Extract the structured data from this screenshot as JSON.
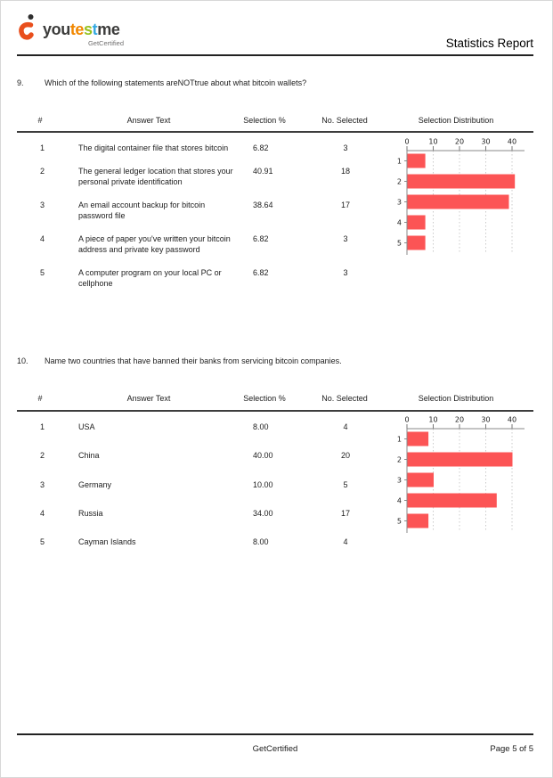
{
  "header": {
    "logo": {
      "word_parts": [
        {
          "text": "you",
          "color": "#3c3c3b"
        },
        {
          "text": "te",
          "color": "#f18700"
        },
        {
          "text": "s",
          "color": "#95c11f"
        },
        {
          "text": "t",
          "color": "#36a9e1"
        },
        {
          "text": "me",
          "color": "#3c3c3b"
        }
      ],
      "tagline": "GetCertified"
    },
    "title": "Statistics Report"
  },
  "questions": [
    {
      "number": "9.",
      "text": "Which of the following statements areNOTtrue about what bitcoin wallets?",
      "table": {
        "columns": [
          "#",
          "Answer Text",
          "Selection %",
          "No. Selected",
          "Selection Distribution"
        ],
        "rows": [
          [
            "1",
            "The digital container file that stores bitcoin",
            "6.82",
            "3"
          ],
          [
            "2",
            "The general ledger location that stores your personal private identification",
            "40.91",
            "18"
          ],
          [
            "3",
            "An email account backup for bitcoin password file",
            "38.64",
            "17"
          ],
          [
            "4",
            "A piece of paper you've written your bitcoin address and private key password",
            "6.82",
            "3"
          ],
          [
            "5",
            "A computer program on your local PC or cellphone",
            "6.82",
            "3"
          ]
        ]
      },
      "chart_data": {
        "type": "bar",
        "orientation": "horizontal",
        "title": "Selection Distribution",
        "categories": [
          "1",
          "2",
          "3",
          "4",
          "5"
        ],
        "values": [
          6.82,
          40.91,
          38.64,
          6.82,
          6.82
        ],
        "xticks": [
          0,
          10,
          20,
          30,
          40
        ],
        "xlim": [
          0,
          44
        ],
        "bar_color": "#fc5455",
        "grid": "dashed-vertical"
      }
    },
    {
      "number": "10.",
      "text": "Name two countries that have banned their banks from servicing bitcoin companies.",
      "table": {
        "columns": [
          "#",
          "Answer Text",
          "Selection %",
          "No. Selected",
          "Selection Distribution"
        ],
        "rows": [
          [
            "1",
            "USA",
            "8.00",
            "4"
          ],
          [
            "2",
            "China",
            "40.00",
            "20"
          ],
          [
            "3",
            "Germany",
            "10.00",
            "5"
          ],
          [
            "4",
            "Russia",
            "34.00",
            "17"
          ],
          [
            "5",
            "Cayman Islands",
            "8.00",
            "4"
          ]
        ]
      },
      "chart_data": {
        "type": "bar",
        "orientation": "horizontal",
        "title": "Selection Distribution",
        "categories": [
          "1",
          "2",
          "3",
          "4",
          "5"
        ],
        "values": [
          8.0,
          40.0,
          10.0,
          34.0,
          8.0
        ],
        "xticks": [
          0,
          10,
          20,
          30,
          40
        ],
        "xlim": [
          0,
          44
        ],
        "bar_color": "#fc5455",
        "grid": "dashed-vertical"
      }
    }
  ],
  "footer": {
    "center": "GetCertified",
    "right": "Page 5 of 5"
  },
  "colors": {
    "bar": "#fc5455",
    "rule": "#222222",
    "axis": "#8a8a8a",
    "gridline": "#cbcbcb"
  }
}
